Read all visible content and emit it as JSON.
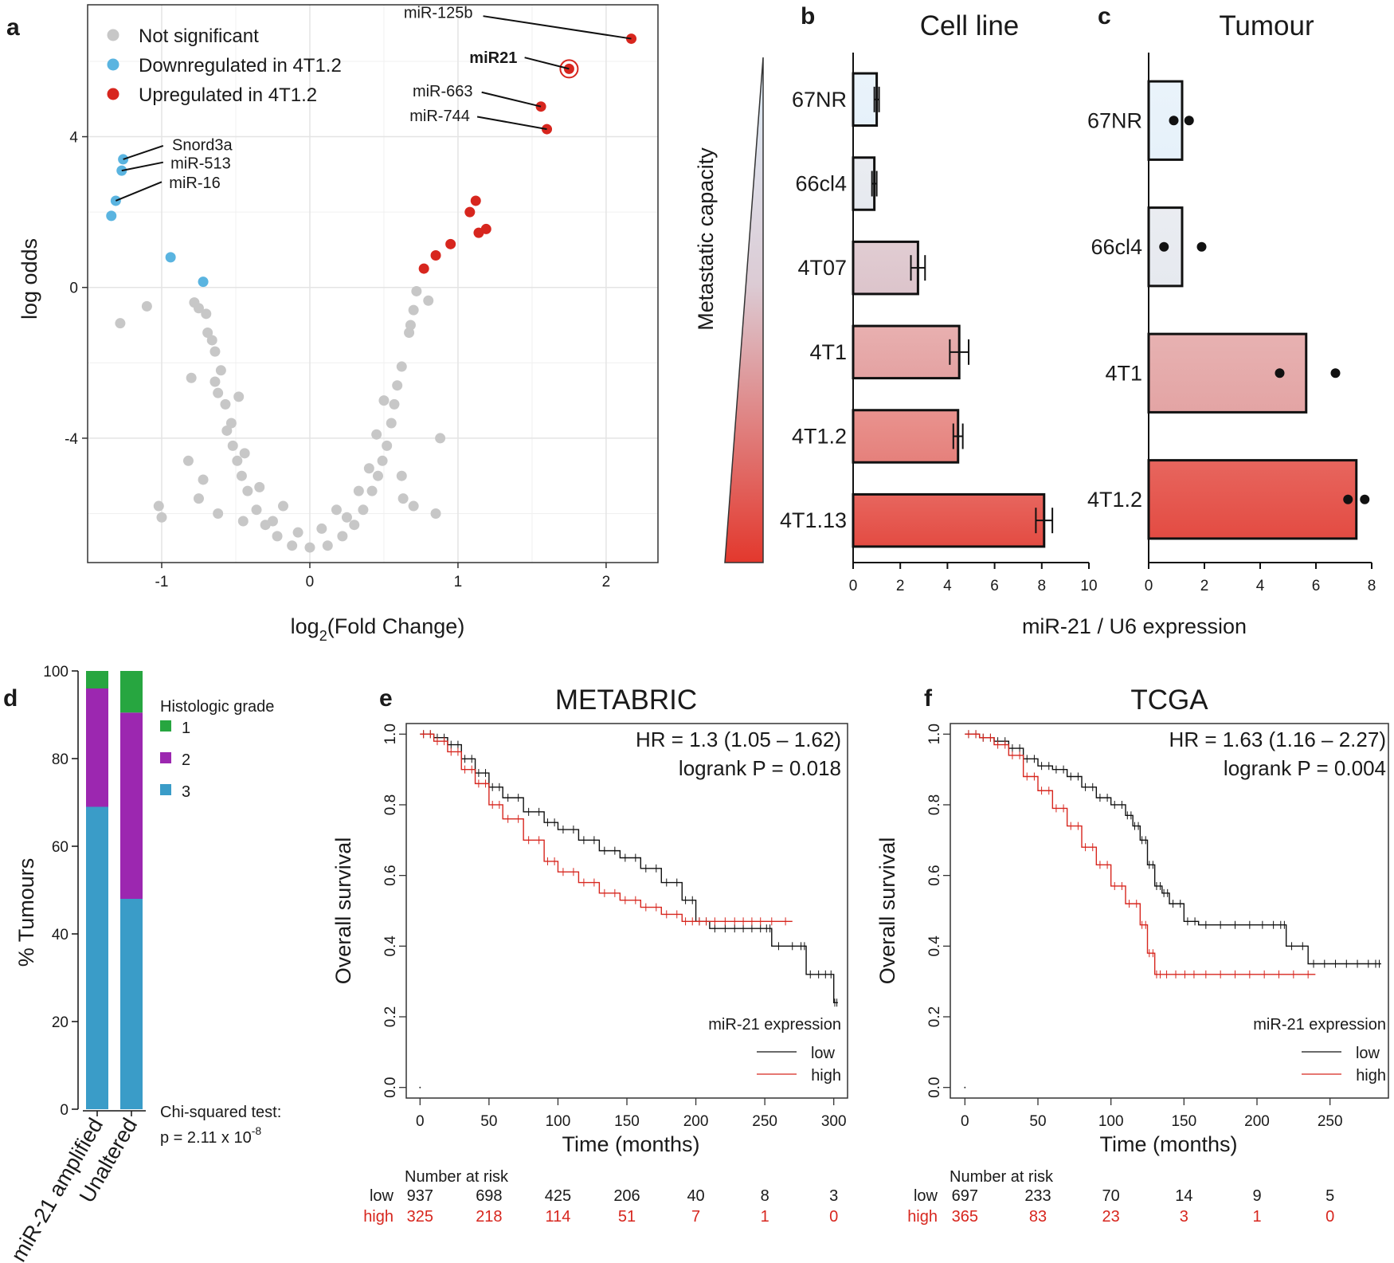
{
  "panel_labels": {
    "a": "a",
    "b": "b",
    "c": "c",
    "d": "d",
    "e": "e",
    "f": "f"
  },
  "colors": {
    "not_significant": "#c7c7c7",
    "downregulated": "#5ab4e0",
    "upregulated": "#d7261e",
    "grade1": "#27a640",
    "grade2": "#9c27b0",
    "grade3": "#3a9cc8",
    "km_low": "#111111",
    "km_high": "#d7261e"
  },
  "chart_data": [
    {
      "id": "a",
      "type": "scatter",
      "title": "",
      "xlabel_main": "log",
      "xlabel_sub": "2",
      "xlabel_rest": "(Fold Change)",
      "ylabel": "log odds",
      "xlim": [
        -1.5,
        2.35
      ],
      "ylim": [
        -7.3,
        7.5
      ],
      "xticks": [
        -1,
        0,
        1,
        2
      ],
      "xtick_labels": [
        "-1",
        "0",
        "1",
        "2"
      ],
      "yticks": [
        -4,
        0,
        4
      ],
      "ytick_labels": [
        "-4",
        "0",
        "4"
      ],
      "legend": [
        {
          "label": "Not significant",
          "color_key": "not_significant"
        },
        {
          "label": "Downregulated in 4T1.2",
          "color_key": "downregulated"
        },
        {
          "label": "Upregulated in 4T1.2",
          "color_key": "upregulated"
        }
      ],
      "series": [
        {
          "name": "Upregulated in 4T1.2",
          "color_key": "upregulated",
          "points": [
            [
              2.17,
              6.6
            ],
            [
              1.75,
              5.8
            ],
            [
              1.56,
              4.8
            ],
            [
              1.6,
              4.2
            ],
            [
              1.12,
              2.3
            ],
            [
              1.08,
              2.0
            ],
            [
              1.19,
              1.55
            ],
            [
              1.14,
              1.45
            ],
            [
              0.95,
              1.15
            ],
            [
              0.85,
              0.85
            ],
            [
              0.77,
              0.5
            ]
          ]
        },
        {
          "name": "Downregulated in 4T1.2",
          "color_key": "downregulated",
          "points": [
            [
              -1.26,
              3.4
            ],
            [
              -1.27,
              3.1
            ],
            [
              -1.31,
              2.3
            ],
            [
              -1.34,
              1.9
            ],
            [
              -0.94,
              0.8
            ],
            [
              -0.72,
              0.15
            ]
          ]
        },
        {
          "name": "Not significant",
          "color_key": "not_significant",
          "points": [
            [
              -1.1,
              -0.5
            ],
            [
              -1.28,
              -0.95
            ],
            [
              -0.78,
              -0.4
            ],
            [
              -0.75,
              -0.55
            ],
            [
              -0.7,
              -0.7
            ],
            [
              -0.69,
              -1.2
            ],
            [
              -0.66,
              -1.4
            ],
            [
              -0.64,
              -1.7
            ],
            [
              -0.6,
              -2.2
            ],
            [
              -0.64,
              -2.5
            ],
            [
              -0.62,
              -2.8
            ],
            [
              -0.57,
              -3.1
            ],
            [
              -0.53,
              -3.6
            ],
            [
              -0.52,
              -4.2
            ],
            [
              -0.49,
              -4.6
            ],
            [
              -0.46,
              -5.0
            ],
            [
              -0.42,
              -5.4
            ],
            [
              -0.36,
              -5.9
            ],
            [
              -0.3,
              -6.3
            ],
            [
              -0.22,
              -6.6
            ],
            [
              -0.12,
              -6.85
            ],
            [
              0.0,
              -6.9
            ],
            [
              0.12,
              -6.85
            ],
            [
              0.22,
              -6.6
            ],
            [
              0.3,
              -6.3
            ],
            [
              0.36,
              -5.9
            ],
            [
              0.42,
              -5.4
            ],
            [
              0.46,
              -5.0
            ],
            [
              0.49,
              -4.6
            ],
            [
              0.52,
              -4.2
            ],
            [
              0.55,
              -3.6
            ],
            [
              0.57,
              -3.1
            ],
            [
              0.59,
              -2.6
            ],
            [
              0.62,
              -2.1
            ],
            [
              0.67,
              -1.2
            ],
            [
              0.68,
              -1.0
            ],
            [
              0.7,
              -0.6
            ],
            [
              0.72,
              -0.1
            ],
            [
              0.8,
              -0.35
            ],
            [
              0.88,
              -4.0
            ],
            [
              0.62,
              -5.0
            ],
            [
              0.63,
              -5.6
            ],
            [
              0.7,
              -5.8
            ],
            [
              0.85,
              -6.0
            ],
            [
              -0.8,
              -2.4
            ],
            [
              -0.82,
              -4.6
            ],
            [
              -0.72,
              -5.1
            ],
            [
              -0.75,
              -5.6
            ],
            [
              -0.62,
              -6.0
            ],
            [
              -0.45,
              -6.2
            ],
            [
              -1.02,
              -5.8
            ],
            [
              -1.0,
              -6.1
            ],
            [
              -0.56,
              -3.8
            ],
            [
              -0.34,
              -5.3
            ],
            [
              0.33,
              -5.4
            ],
            [
              0.45,
              -3.9
            ],
            [
              0.5,
              -3.0
            ],
            [
              -0.48,
              -2.9
            ],
            [
              -0.44,
              -4.4
            ],
            [
              0.4,
              -4.8
            ],
            [
              -0.25,
              -6.2
            ],
            [
              0.25,
              -6.1
            ],
            [
              -0.18,
              -5.8
            ],
            [
              0.18,
              -5.9
            ],
            [
              -0.08,
              -6.5
            ],
            [
              0.08,
              -6.4
            ]
          ]
        }
      ],
      "annotations": [
        {
          "label": "miR-125b",
          "x": 2.17,
          "y": 6.6,
          "bold": false
        },
        {
          "label": "miR21",
          "x": 1.75,
          "y": 5.8,
          "bold": true
        },
        {
          "label": "miR-663",
          "x": 1.56,
          "y": 4.8,
          "bold": false
        },
        {
          "label": "miR-744",
          "x": 1.6,
          "y": 4.2,
          "bold": false
        },
        {
          "label": "Snord3a",
          "x": -1.26,
          "y": 3.4,
          "bold": false
        },
        {
          "label": "miR-513",
          "x": -1.27,
          "y": 3.1,
          "bold": false
        },
        {
          "label": "miR-16",
          "x": -1.31,
          "y": 2.3,
          "bold": false
        }
      ]
    },
    {
      "id": "b",
      "type": "bar",
      "title": "Cell line",
      "categories": [
        "67NR",
        "66cl4",
        "4T07",
        "4T1",
        "4T1.2",
        "4T1.13"
      ],
      "values": [
        1.0,
        0.9,
        2.75,
        4.5,
        4.45,
        8.1
      ],
      "errors": [
        0.1,
        0.1,
        0.3,
        0.4,
        0.2,
        0.35
      ],
      "fill_colors": [
        "#e6f1fa",
        "#e6e9ef",
        "#dcc4cb",
        "#e4a2a2",
        "#e5807b",
        "#e34b42"
      ],
      "xlim": [
        0,
        10
      ],
      "xticks": [
        0,
        2,
        4,
        6,
        8,
        10
      ],
      "xtick_labels": [
        "0",
        "2",
        "4",
        "6",
        "8",
        "10"
      ],
      "ylabel": "Metastatic capacity",
      "xlabel": "miR-21 / U6 expression"
    },
    {
      "id": "c",
      "type": "bar",
      "title": "Tumour",
      "categories": [
        "67NR",
        "66cl4",
        "4T1",
        "4T1.2"
      ],
      "values": [
        1.2,
        1.2,
        5.65,
        7.45
      ],
      "replicates": [
        [
          0.9,
          1.45
        ],
        [
          0.55,
          1.9
        ],
        [
          4.7,
          6.7
        ],
        [
          7.15,
          7.75
        ]
      ],
      "fill_colors": [
        "#e6f1fa",
        "#e6e9ef",
        "#e3a4a4",
        "#e34b42"
      ],
      "xlim": [
        0,
        8
      ],
      "xticks": [
        0,
        2,
        4,
        6,
        8
      ],
      "xtick_labels": [
        "0",
        "2",
        "4",
        "6",
        "8"
      ],
      "xlabel": "miR-21 / U6 expression"
    },
    {
      "id": "d",
      "type": "bar",
      "stacked": true,
      "categories": [
        "miR-21 amplified",
        "Unaltered"
      ],
      "series": [
        {
          "name": "3",
          "color_key": "grade3",
          "values": [
            69,
            48
          ]
        },
        {
          "name": "2",
          "color_key": "grade2",
          "values": [
            27,
            42.5
          ]
        },
        {
          "name": "1",
          "color_key": "grade1",
          "values": [
            4,
            9.5
          ]
        }
      ],
      "legend_title": "Histologic grade",
      "legend_labels": [
        "1",
        "2",
        "3"
      ],
      "ylabel": "% Tumours",
      "ylim": [
        0,
        100
      ],
      "yticks": [
        0,
        20,
        40,
        60,
        80,
        100
      ],
      "ytick_labels": [
        "0",
        "20",
        "40",
        "60",
        "80",
        "100"
      ],
      "stat_line1": "Chi-squared test:",
      "stat_line2": "p = 2.11 x 10",
      "stat_exp": "-8"
    },
    {
      "id": "e",
      "type": "line",
      "title": "METABRIC",
      "xlabel": "Time (months)",
      "ylabel": "Overall survival",
      "xlim": [
        -10,
        310
      ],
      "ylim": [
        -0.03,
        1.03
      ],
      "xticks": [
        0,
        50,
        100,
        150,
        200,
        250,
        300
      ],
      "xtick_labels": [
        "0",
        "50",
        "100",
        "150",
        "200",
        "250",
        "300"
      ],
      "yticks": [
        0.0,
        0.2,
        0.4,
        0.6,
        0.8,
        1.0
      ],
      "ytick_labels": [
        "0.0",
        "0.2",
        "0.4",
        "0.6",
        "0.8",
        "1.0"
      ],
      "hr_text": "HR = 1.3 (1.05 – 1.62)",
      "p_text": "logrank P = 0.018",
      "legend_title": "miR-21 expression",
      "legend_low": "low",
      "legend_high": "high",
      "series": [
        {
          "name": "low",
          "color_key": "km_low",
          "x": [
            0,
            10,
            20,
            30,
            40,
            50,
            60,
            75,
            90,
            100,
            115,
            130,
            145,
            160,
            175,
            190,
            200,
            210,
            225,
            250,
            255,
            275,
            280,
            292,
            300,
            303
          ],
          "y": [
            1.0,
            0.99,
            0.97,
            0.93,
            0.89,
            0.85,
            0.82,
            0.78,
            0.75,
            0.73,
            0.7,
            0.67,
            0.65,
            0.62,
            0.58,
            0.53,
            0.47,
            0.45,
            0.45,
            0.45,
            0.4,
            0.4,
            0.32,
            0.32,
            0.24,
            0.24
          ]
        },
        {
          "name": "high",
          "color_key": "km_high",
          "x": [
            0,
            10,
            20,
            30,
            40,
            50,
            60,
            75,
            90,
            100,
            115,
            130,
            145,
            160,
            175,
            190,
            200,
            210,
            225,
            250,
            270
          ],
          "y": [
            1.0,
            0.98,
            0.95,
            0.9,
            0.86,
            0.8,
            0.76,
            0.7,
            0.64,
            0.61,
            0.58,
            0.55,
            0.53,
            0.51,
            0.49,
            0.47,
            0.47,
            0.47,
            0.47,
            0.47,
            0.47
          ]
        }
      ],
      "risk_title": "Number at risk",
      "risk_low_label": "low",
      "risk_high_label": "high",
      "risk_times": [
        0,
        50,
        100,
        150,
        200,
        250,
        300
      ],
      "risk_low": [
        "937",
        "698",
        "425",
        "206",
        "40",
        "8",
        "3"
      ],
      "risk_high": [
        "325",
        "218",
        "114",
        "51",
        "7",
        "1",
        "0"
      ]
    },
    {
      "id": "f",
      "type": "line",
      "title": "TCGA",
      "xlabel": "Time (months)",
      "ylabel": "Overall survival",
      "xlim": [
        -10,
        290
      ],
      "ylim": [
        -0.03,
        1.03
      ],
      "xticks": [
        0,
        50,
        100,
        150,
        200,
        250
      ],
      "xtick_labels": [
        "0",
        "50",
        "100",
        "150",
        "200",
        "250"
      ],
      "yticks": [
        0.0,
        0.2,
        0.4,
        0.6,
        0.8,
        1.0
      ],
      "ytick_labels": [
        "0.0",
        "0.2",
        "0.4",
        "0.6",
        "0.8",
        "1.0"
      ],
      "hr_text": "HR = 1.63 (1.16 – 2.27)",
      "p_text": "logrank P = 0.004",
      "legend_title": "miR-21 expression",
      "legend_low": "low",
      "legend_high": "high",
      "series": [
        {
          "name": "low",
          "color_key": "km_low",
          "x": [
            0,
            10,
            20,
            30,
            40,
            50,
            60,
            70,
            80,
            90,
            100,
            110,
            115,
            120,
            125,
            130,
            135,
            140,
            150,
            160,
            200,
            215,
            220,
            235,
            250,
            265,
            280,
            285
          ],
          "y": [
            1.0,
            0.99,
            0.98,
            0.96,
            0.93,
            0.91,
            0.9,
            0.88,
            0.85,
            0.82,
            0.8,
            0.77,
            0.74,
            0.7,
            0.63,
            0.57,
            0.55,
            0.52,
            0.47,
            0.46,
            0.46,
            0.46,
            0.4,
            0.35,
            0.35,
            0.35,
            0.35,
            0.35
          ]
        },
        {
          "name": "high",
          "color_key": "km_high",
          "x": [
            0,
            10,
            20,
            30,
            40,
            50,
            60,
            70,
            80,
            90,
            100,
            110,
            120,
            125,
            130,
            135,
            160,
            200,
            240
          ],
          "y": [
            1.0,
            0.99,
            0.97,
            0.94,
            0.88,
            0.84,
            0.79,
            0.74,
            0.68,
            0.63,
            0.57,
            0.52,
            0.46,
            0.38,
            0.32,
            0.32,
            0.32,
            0.32,
            0.32
          ]
        }
      ],
      "risk_title": "Number at risk",
      "risk_low_label": "low",
      "risk_high_label": "high",
      "risk_times": [
        0,
        50,
        100,
        150,
        200,
        250
      ],
      "risk_low": [
        "697",
        "233",
        "70",
        "14",
        "9",
        "5"
      ],
      "risk_high": [
        "365",
        "83",
        "23",
        "3",
        "1",
        "0"
      ]
    }
  ]
}
